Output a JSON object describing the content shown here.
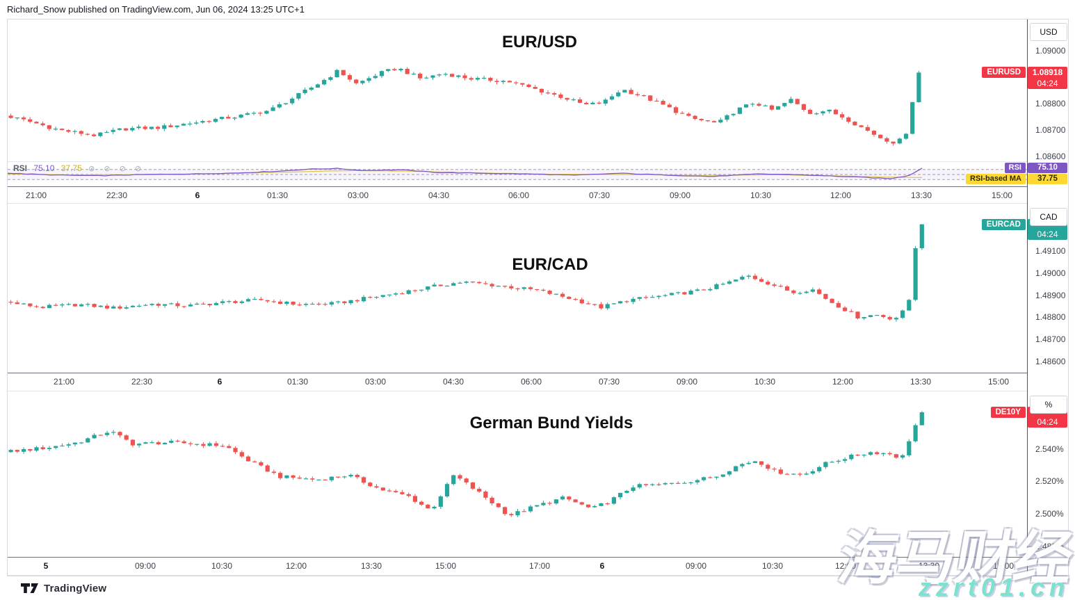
{
  "header": {
    "attribution": "Richard_Snow published on TradingView.com, Jun 06, 2024 13:25 UTC+1"
  },
  "footer": {
    "brand": "TradingView"
  },
  "watermark": {
    "cn_text": "海马财经",
    "url_text": "zzrt01.cn"
  },
  "colors": {
    "up": "#26a69a",
    "down": "#ef5350",
    "red_badge": "#f23645",
    "teal_badge": "#26a69a",
    "rsi_purple": "#7e57c2",
    "ma_yellow_line": "#e0c44d",
    "yellow_badge": "#fdd835",
    "yellow_badge_text": "#2e2a00",
    "band_fill": "rgba(126,87,194,0.07)",
    "level_line": "#9b9db3",
    "overbought_fill": "rgba(76,175,80,0.3)"
  },
  "chart_data": [
    {
      "type": "candlestick",
      "title": "EUR/USD",
      "symbol": "EURUSD",
      "unit": "USD",
      "accent": "#f23645",
      "badge": {
        "price": "1.08918",
        "time": "04:24"
      },
      "last_value": 1.08918,
      "ylim": [
        1.08582,
        1.09119
      ],
      "y_ticks": [
        {
          "v": 1.09,
          "label": "1.09000"
        },
        {
          "v": 1.088,
          "label": "1.08800"
        },
        {
          "v": 1.087,
          "label": "1.08700"
        },
        {
          "v": 1.086,
          "label": "1.08600"
        }
      ],
      "x_ticks": [
        {
          "u": 0.028,
          "label": "21:00"
        },
        {
          "u": 0.1069,
          "label": "22:30"
        },
        {
          "u": 0.1859,
          "label": "6",
          "day": true
        },
        {
          "u": 0.2648,
          "label": "01:30"
        },
        {
          "u": 0.3438,
          "label": "03:00"
        },
        {
          "u": 0.4227,
          "label": "04:30"
        },
        {
          "u": 0.5017,
          "label": "06:00"
        },
        {
          "u": 0.5806,
          "label": "07:30"
        },
        {
          "u": 0.6596,
          "label": "09:00"
        },
        {
          "u": 0.7385,
          "label": "10:30"
        },
        {
          "u": 0.8175,
          "label": "12:00"
        },
        {
          "u": 0.8964,
          "label": "13:30"
        },
        {
          "u": 0.9754,
          "label": "15:00"
        }
      ],
      "data_end": 0.897,
      "seed": 3,
      "body_jitter": 7e-05,
      "wick_jitter": 9e-05,
      "path": [
        [
          0,
          1.08755
        ],
        [
          0.03,
          1.0873
        ],
        [
          0.06,
          1.087
        ],
        [
          0.1,
          1.0868
        ],
        [
          0.13,
          1.08705
        ],
        [
          0.17,
          1.0871
        ],
        [
          0.22,
          1.08735
        ],
        [
          0.26,
          1.08755
        ],
        [
          0.29,
          1.08775
        ],
        [
          0.32,
          1.0883
        ],
        [
          0.345,
          1.0888
        ],
        [
          0.365,
          1.08925
        ],
        [
          0.385,
          1.08875
        ],
        [
          0.41,
          1.08915
        ],
        [
          0.43,
          1.08935
        ],
        [
          0.455,
          1.08895
        ],
        [
          0.48,
          1.08915
        ],
        [
          0.51,
          1.08895
        ],
        [
          0.55,
          1.08885
        ],
        [
          0.58,
          1.08855
        ],
        [
          0.61,
          1.08825
        ],
        [
          0.635,
          1.08795
        ],
        [
          0.655,
          1.08805
        ],
        [
          0.675,
          1.08855
        ],
        [
          0.7,
          1.08825
        ],
        [
          0.72,
          1.08795
        ],
        [
          0.75,
          1.08745
        ],
        [
          0.78,
          1.08725
        ],
        [
          0.8,
          1.08775
        ],
        [
          0.82,
          1.08805
        ],
        [
          0.84,
          1.08775
        ],
        [
          0.86,
          1.08815
        ],
        [
          0.88,
          1.08765
        ],
        [
          0.9,
          1.08775
        ],
        [
          0.92,
          1.08745
        ],
        [
          0.94,
          1.08705
        ],
        [
          0.96,
          1.08668
        ],
        [
          0.975,
          1.08652
        ],
        [
          0.985,
          1.08675
        ],
        [
          0.993,
          1.0881
        ],
        [
          1,
          1.08918
        ]
      ],
      "rsi": {
        "name": "RSI",
        "value": "75.10",
        "ma_value": "37.75",
        "ma_name": "RSI-based MA",
        "icons": "⊘ ⊘ ⊘ ⊘",
        "levels": [
          70,
          50,
          30
        ],
        "last": 75.1,
        "ma_last": 37.75,
        "line": [
          [
            0,
            55
          ],
          [
            0.05,
            48
          ],
          [
            0.1,
            45
          ],
          [
            0.15,
            50
          ],
          [
            0.2,
            52
          ],
          [
            0.25,
            56
          ],
          [
            0.3,
            64
          ],
          [
            0.325,
            71
          ],
          [
            0.36,
            74
          ],
          [
            0.39,
            66
          ],
          [
            0.43,
            69
          ],
          [
            0.47,
            58
          ],
          [
            0.52,
            55
          ],
          [
            0.57,
            52
          ],
          [
            0.62,
            47
          ],
          [
            0.67,
            55
          ],
          [
            0.72,
            48
          ],
          [
            0.77,
            42
          ],
          [
            0.82,
            52
          ],
          [
            0.86,
            50
          ],
          [
            0.9,
            44
          ],
          [
            0.94,
            38
          ],
          [
            0.965,
            33
          ],
          [
            0.985,
            45
          ],
          [
            1,
            75.1
          ]
        ],
        "ma_line": [
          [
            0,
            52
          ],
          [
            0.08,
            48
          ],
          [
            0.16,
            50
          ],
          [
            0.24,
            54
          ],
          [
            0.32,
            61
          ],
          [
            0.38,
            66
          ],
          [
            0.44,
            63
          ],
          [
            0.52,
            56
          ],
          [
            0.6,
            51
          ],
          [
            0.68,
            50
          ],
          [
            0.76,
            46
          ],
          [
            0.84,
            49
          ],
          [
            0.92,
            43
          ],
          [
            0.97,
            39
          ],
          [
            1,
            37.75
          ]
        ]
      }
    },
    {
      "type": "candlestick",
      "title": "EUR/CAD",
      "symbol": "EURCAD",
      "unit": "CAD",
      "accent": "#26a69a",
      "badge": {
        "time": "04:24"
      },
      "last_value": 1.4922,
      "ylim": [
        1.4855,
        1.49313
      ],
      "y_ticks": [
        {
          "v": 1.491,
          "label": "1.49100"
        },
        {
          "v": 1.49,
          "label": "1.49000"
        },
        {
          "v": 1.489,
          "label": "1.48900"
        },
        {
          "v": 1.488,
          "label": "1.48800"
        },
        {
          "v": 1.487,
          "label": "1.48700"
        },
        {
          "v": 1.486,
          "label": "1.48600"
        }
      ],
      "x_ticks": [
        {
          "u": 0.0553,
          "label": "21:00"
        },
        {
          "u": 0.1317,
          "label": "22:30"
        },
        {
          "u": 0.2081,
          "label": "6",
          "day": true
        },
        {
          "u": 0.2845,
          "label": "01:30"
        },
        {
          "u": 0.3609,
          "label": "03:00"
        },
        {
          "u": 0.4373,
          "label": "04:30"
        },
        {
          "u": 0.5137,
          "label": "06:00"
        },
        {
          "u": 0.5901,
          "label": "07:30"
        },
        {
          "u": 0.6665,
          "label": "09:00"
        },
        {
          "u": 0.7429,
          "label": "10:30"
        },
        {
          "u": 0.8193,
          "label": "12:00"
        },
        {
          "u": 0.8957,
          "label": "13:30"
        },
        {
          "u": 0.9721,
          "label": "15:00"
        }
      ],
      "data_end": 0.9,
      "seed": 11,
      "body_jitter": 8e-05,
      "wick_jitter": 0.0001,
      "path": [
        [
          0,
          1.4887
        ],
        [
          0.04,
          1.48845
        ],
        [
          0.08,
          1.48858
        ],
        [
          0.12,
          1.48842
        ],
        [
          0.16,
          1.4886
        ],
        [
          0.2,
          1.48852
        ],
        [
          0.24,
          1.48868
        ],
        [
          0.28,
          1.48878
        ],
        [
          0.32,
          1.48858
        ],
        [
          0.36,
          1.48862
        ],
        [
          0.4,
          1.4889
        ],
        [
          0.44,
          1.48918
        ],
        [
          0.48,
          1.48948
        ],
        [
          0.5,
          1.4896
        ],
        [
          0.54,
          1.48942
        ],
        [
          0.58,
          1.48922
        ],
        [
          0.62,
          1.48882
        ],
        [
          0.65,
          1.48845
        ],
        [
          0.68,
          1.48878
        ],
        [
          0.72,
          1.48898
        ],
        [
          0.76,
          1.48922
        ],
        [
          0.79,
          1.48958
        ],
        [
          0.81,
          1.48988
        ],
        [
          0.83,
          1.48958
        ],
        [
          0.86,
          1.48912
        ],
        [
          0.88,
          1.48928
        ],
        [
          0.9,
          1.48872
        ],
        [
          0.93,
          1.48802
        ],
        [
          0.95,
          1.48812
        ],
        [
          0.97,
          1.48792
        ],
        [
          0.985,
          1.48845
        ],
        [
          0.994,
          1.4915
        ],
        [
          1,
          1.4922
        ]
      ]
    },
    {
      "type": "candlestick",
      "title": "German Bund Yields",
      "symbol": "DE10Y",
      "unit": "%",
      "accent": "#f23645",
      "badge": {
        "time": "04:24"
      },
      "last_value": 2.5625,
      "ylim": [
        2.4736,
        2.5753
      ],
      "y_ticks": [
        {
          "v": 2.54,
          "label": "2.540%"
        },
        {
          "v": 2.52,
          "label": "2.520%"
        },
        {
          "v": 2.5,
          "label": "2.500%"
        },
        {
          "v": 2.48,
          "label": "2.480%"
        }
      ],
      "x_ticks": [
        {
          "u": 0.0375,
          "label": "5",
          "day": true
        },
        {
          "u": 0.135,
          "label": "09:00"
        },
        {
          "u": 0.21,
          "label": "10:30"
        },
        {
          "u": 0.283,
          "label": "12:00"
        },
        {
          "u": 0.357,
          "label": "13:30"
        },
        {
          "u": 0.43,
          "label": "15:00"
        },
        {
          "u": 0.522,
          "label": "17:00"
        },
        {
          "u": 0.583,
          "label": "6",
          "day": true
        },
        {
          "u": 0.675,
          "label": "09:00"
        },
        {
          "u": 0.75,
          "label": "10:30"
        },
        {
          "u": 0.822,
          "label": "12:00"
        },
        {
          "u": 0.904,
          "label": "13:30"
        },
        {
          "u": 0.977,
          "label": "15:00"
        }
      ],
      "data_end": 0.9,
      "seed": 23,
      "body_jitter": 0.0011,
      "wick_jitter": 0.0014,
      "path": [
        [
          0,
          2.538
        ],
        [
          0.05,
          2.541
        ],
        [
          0.08,
          2.544
        ],
        [
          0.115,
          2.551
        ],
        [
          0.14,
          2.543
        ],
        [
          0.18,
          2.544
        ],
        [
          0.24,
          2.542
        ],
        [
          0.265,
          2.533
        ],
        [
          0.3,
          2.523
        ],
        [
          0.34,
          2.521
        ],
        [
          0.375,
          2.524
        ],
        [
          0.41,
          2.515
        ],
        [
          0.44,
          2.511
        ],
        [
          0.465,
          2.502
        ],
        [
          0.49,
          2.524
        ],
        [
          0.52,
          2.512
        ],
        [
          0.55,
          2.499
        ],
        [
          0.58,
          2.505
        ],
        [
          0.61,
          2.51
        ],
        [
          0.64,
          2.503
        ],
        [
          0.66,
          2.508
        ],
        [
          0.685,
          2.517
        ],
        [
          0.715,
          2.518
        ],
        [
          0.745,
          2.52
        ],
        [
          0.775,
          2.523
        ],
        [
          0.8,
          2.53
        ],
        [
          0.82,
          2.533
        ],
        [
          0.84,
          2.526
        ],
        [
          0.87,
          2.524
        ],
        [
          0.895,
          2.531
        ],
        [
          0.92,
          2.535
        ],
        [
          0.945,
          2.538
        ],
        [
          0.965,
          2.537
        ],
        [
          0.978,
          2.534
        ],
        [
          0.99,
          2.551
        ],
        [
          1,
          2.5625
        ]
      ]
    }
  ]
}
